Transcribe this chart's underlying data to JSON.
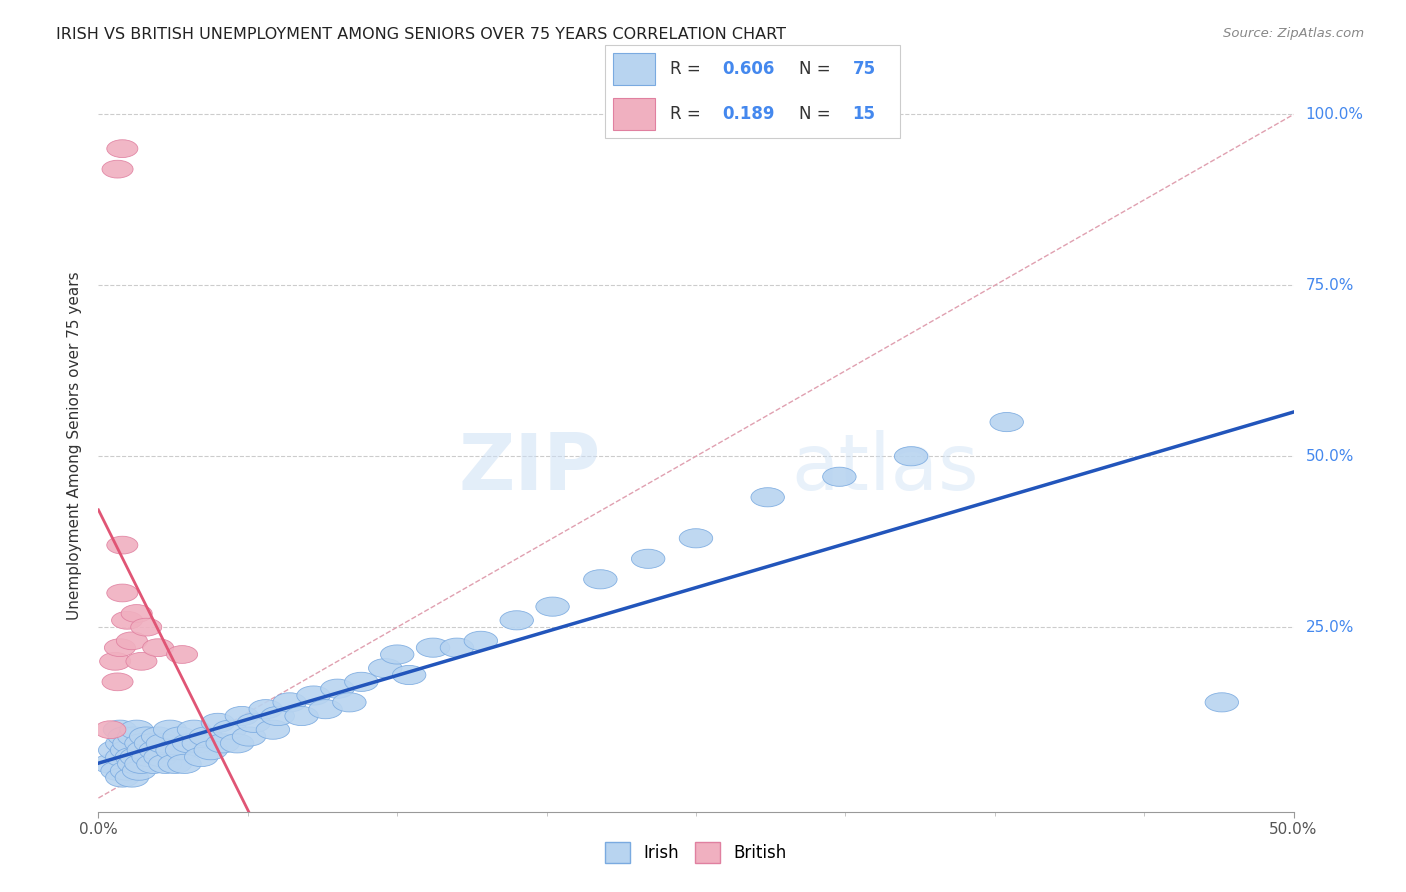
{
  "title": "IRISH VS BRITISH UNEMPLOYMENT AMONG SENIORS OVER 75 YEARS CORRELATION CHART",
  "source": "Source: ZipAtlas.com",
  "ylabel": "Unemployment Among Seniors over 75 years",
  "xlim": [
    0.0,
    0.5
  ],
  "ylim": [
    -0.02,
    1.05
  ],
  "irish_R": 0.606,
  "irish_N": 75,
  "british_R": 0.189,
  "british_N": 15,
  "irish_color": "#b8d4f0",
  "british_color": "#f0b0c0",
  "irish_line_color": "#2255bb",
  "british_line_color": "#e05575",
  "dashed_line_color": "#e0a0b0",
  "watermark_zip": "ZIP",
  "watermark_atlas": "atlas",
  "legend_R_color": "#4488ee",
  "irish_scatter_x": [
    0.005,
    0.007,
    0.008,
    0.009,
    0.01,
    0.01,
    0.01,
    0.011,
    0.012,
    0.012,
    0.013,
    0.014,
    0.014,
    0.015,
    0.015,
    0.016,
    0.016,
    0.017,
    0.018,
    0.018,
    0.019,
    0.02,
    0.021,
    0.022,
    0.023,
    0.024,
    0.025,
    0.026,
    0.027,
    0.028,
    0.03,
    0.031,
    0.032,
    0.034,
    0.035,
    0.036,
    0.038,
    0.04,
    0.042,
    0.043,
    0.045,
    0.047,
    0.05,
    0.052,
    0.055,
    0.058,
    0.06,
    0.063,
    0.065,
    0.07,
    0.073,
    0.075,
    0.08,
    0.085,
    0.09,
    0.095,
    0.1,
    0.105,
    0.11,
    0.12,
    0.125,
    0.13,
    0.14,
    0.15,
    0.16,
    0.175,
    0.19,
    0.21,
    0.23,
    0.25,
    0.28,
    0.31,
    0.34,
    0.38,
    0.47
  ],
  "irish_scatter_y": [
    0.05,
    0.07,
    0.04,
    0.1,
    0.08,
    0.06,
    0.03,
    0.09,
    0.07,
    0.04,
    0.08,
    0.06,
    0.03,
    0.09,
    0.05,
    0.1,
    0.06,
    0.04,
    0.08,
    0.05,
    0.07,
    0.09,
    0.06,
    0.08,
    0.05,
    0.07,
    0.09,
    0.06,
    0.08,
    0.05,
    0.1,
    0.07,
    0.05,
    0.09,
    0.07,
    0.05,
    0.08,
    0.1,
    0.08,
    0.06,
    0.09,
    0.07,
    0.11,
    0.08,
    0.1,
    0.08,
    0.12,
    0.09,
    0.11,
    0.13,
    0.1,
    0.12,
    0.14,
    0.12,
    0.15,
    0.13,
    0.16,
    0.14,
    0.17,
    0.19,
    0.21,
    0.18,
    0.22,
    0.22,
    0.23,
    0.26,
    0.28,
    0.32,
    0.35,
    0.38,
    0.44,
    0.47,
    0.5,
    0.55,
    0.14
  ],
  "british_scatter_x": [
    0.005,
    0.007,
    0.008,
    0.009,
    0.01,
    0.012,
    0.014,
    0.016,
    0.018,
    0.02,
    0.025,
    0.035,
    0.01,
    0.01,
    0.008
  ],
  "british_scatter_y": [
    0.1,
    0.2,
    0.17,
    0.22,
    0.3,
    0.26,
    0.23,
    0.27,
    0.2,
    0.25,
    0.22,
    0.21,
    0.37,
    0.95,
    0.92
  ]
}
